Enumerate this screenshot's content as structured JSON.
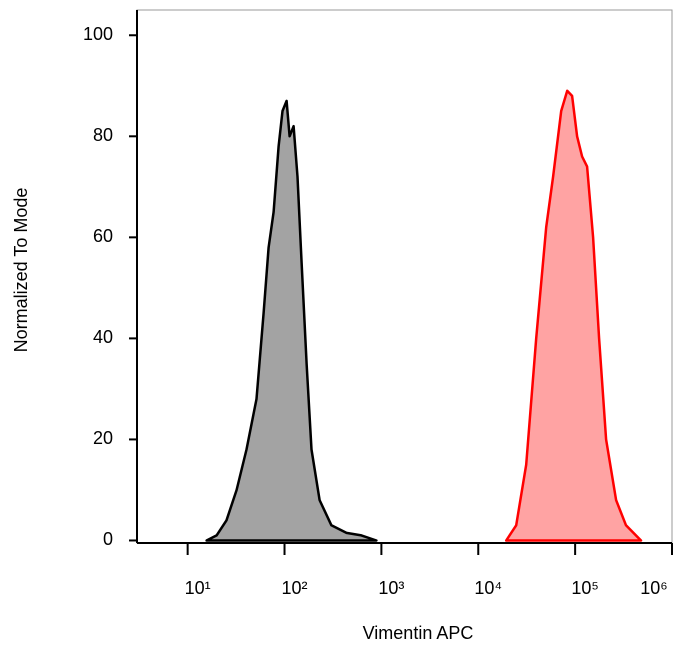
{
  "chart_data": {
    "type": "histogram-overlay",
    "xlabel": "Vimentin APC",
    "ylabel": "Normalized To Mode",
    "xscale": "log",
    "xlim": [
      3,
      1000000
    ],
    "ylim": [
      -0.5,
      105
    ],
    "xticks": [
      {
        "value": 10,
        "label": "10¹"
      },
      {
        "value": 100,
        "label": "10²"
      },
      {
        "value": 1000,
        "label": "10³"
      },
      {
        "value": 10000,
        "label": "10⁴"
      },
      {
        "value": 100000,
        "label": "10⁵"
      },
      {
        "value": 1000000,
        "label": "10⁶"
      }
    ],
    "yticks": [
      0,
      20,
      40,
      60,
      80,
      100
    ],
    "series": [
      {
        "color": "#000000",
        "fill": "#999999",
        "x": [
          15.7,
          19.9,
          25.2,
          32,
          40.5,
          51.4,
          60.8,
          68.5,
          77.1,
          86.8,
          95.3,
          105,
          112.7,
          124,
          136,
          150,
          169,
          190,
          230,
          305,
          436,
          622,
          888
        ],
        "values": [
          0,
          1,
          4,
          10,
          18,
          28,
          45,
          58,
          65,
          78,
          85,
          87,
          80,
          82,
          72,
          55,
          35,
          18,
          8,
          3,
          1.5,
          1,
          0
        ]
      },
      {
        "color": "#ff0000",
        "fill": "#ff9999",
        "x": [
          19450,
          24660,
          31260,
          39630,
          50230,
          59290,
          71780,
          82740,
          93130,
          104900,
          118100,
          133000,
          153400,
          176700,
          208700,
          264700,
          335400,
          478600
        ],
        "values": [
          0,
          3,
          15,
          40,
          62,
          72,
          85,
          89,
          88,
          80,
          76,
          74,
          60,
          40,
          20,
          8,
          3,
          0
        ]
      }
    ]
  }
}
